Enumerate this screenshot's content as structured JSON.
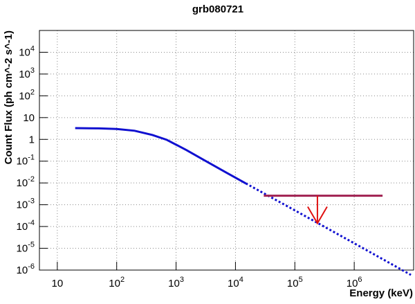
{
  "chart_data": {
    "type": "line",
    "title": "grb080721",
    "x_label": "Energy (keV)",
    "y_label": "Count Flux (ph cm^-2 s^-1)",
    "log_x": true,
    "log_y": true,
    "grid": true,
    "xlim": [
      5,
      10000000
    ],
    "ylim": [
      1e-06,
      100000
    ],
    "xticks": [
      10,
      {
        "value": 100,
        "label": "10^2"
      },
      {
        "value": 1000,
        "label": "10^3"
      },
      {
        "value": 10000,
        "label": "10^4"
      },
      {
        "value": 100000,
        "label": "10^5"
      },
      {
        "value": 1000000,
        "label": "10^6"
      }
    ],
    "yticks": [
      {
        "value": 1e-06,
        "label": "10^-6"
      },
      {
        "value": 1e-05,
        "label": "10^-5"
      },
      {
        "value": 0.0001,
        "label": "10^-4"
      },
      {
        "value": 0.001,
        "label": "10^-3"
      },
      {
        "value": 0.01,
        "label": "10^-2"
      },
      {
        "value": 0.1,
        "label": "10^-1"
      },
      1,
      10,
      {
        "value": 100,
        "label": "10^2"
      },
      {
        "value": 1000,
        "label": "10^3"
      },
      {
        "value": 10000,
        "label": "10^4"
      }
    ],
    "series": [
      {
        "color": "#1010d0",
        "dashed": false,
        "x": [
          20,
          50,
          100,
          200,
          400,
          700,
          1500,
          3000,
          7000,
          15000
        ],
        "values": [
          3.3,
          3.2,
          3.0,
          2.5,
          1.6,
          0.95,
          0.32,
          0.11,
          0.03,
          0.0095
        ]
      },
      {
        "color": "#1010d0",
        "dashed": true,
        "x": [
          15000,
          100000,
          1000000,
          9000000
        ],
        "values": [
          0.0095,
          0.00055,
          1.7e-05,
          6e-07
        ]
      }
    ],
    "upper_limit": {
      "color": "#a02050",
      "arrow_color": "#e01010",
      "x": [
        30000,
        3000000
      ],
      "value": 0.0026,
      "arrow_x": 240000,
      "arrow_to": 0.00014
    }
  }
}
